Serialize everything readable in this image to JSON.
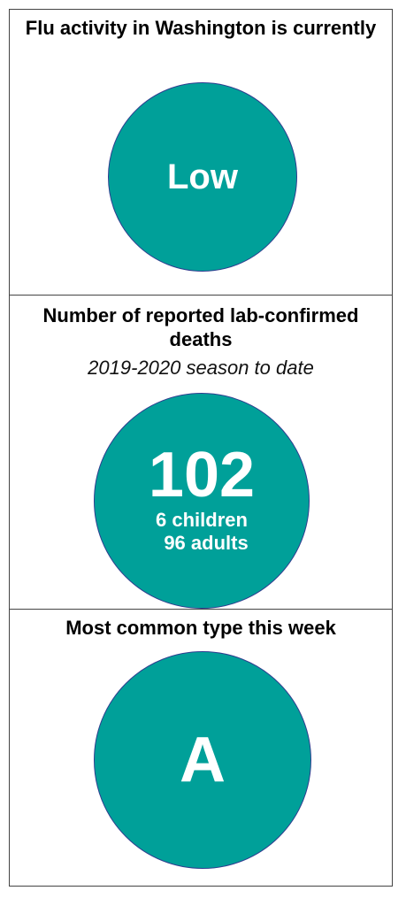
{
  "panels": [
    {
      "title": "Flu activity in Washington is currently",
      "value": "Low"
    },
    {
      "title": "Number of reported lab-confirmed deaths",
      "subtitle": "2019-2020 season to date",
      "value": "102",
      "details": [
        "6 children",
        "96 adults"
      ]
    },
    {
      "title": "Most common type this week",
      "value": "A"
    }
  ]
}
